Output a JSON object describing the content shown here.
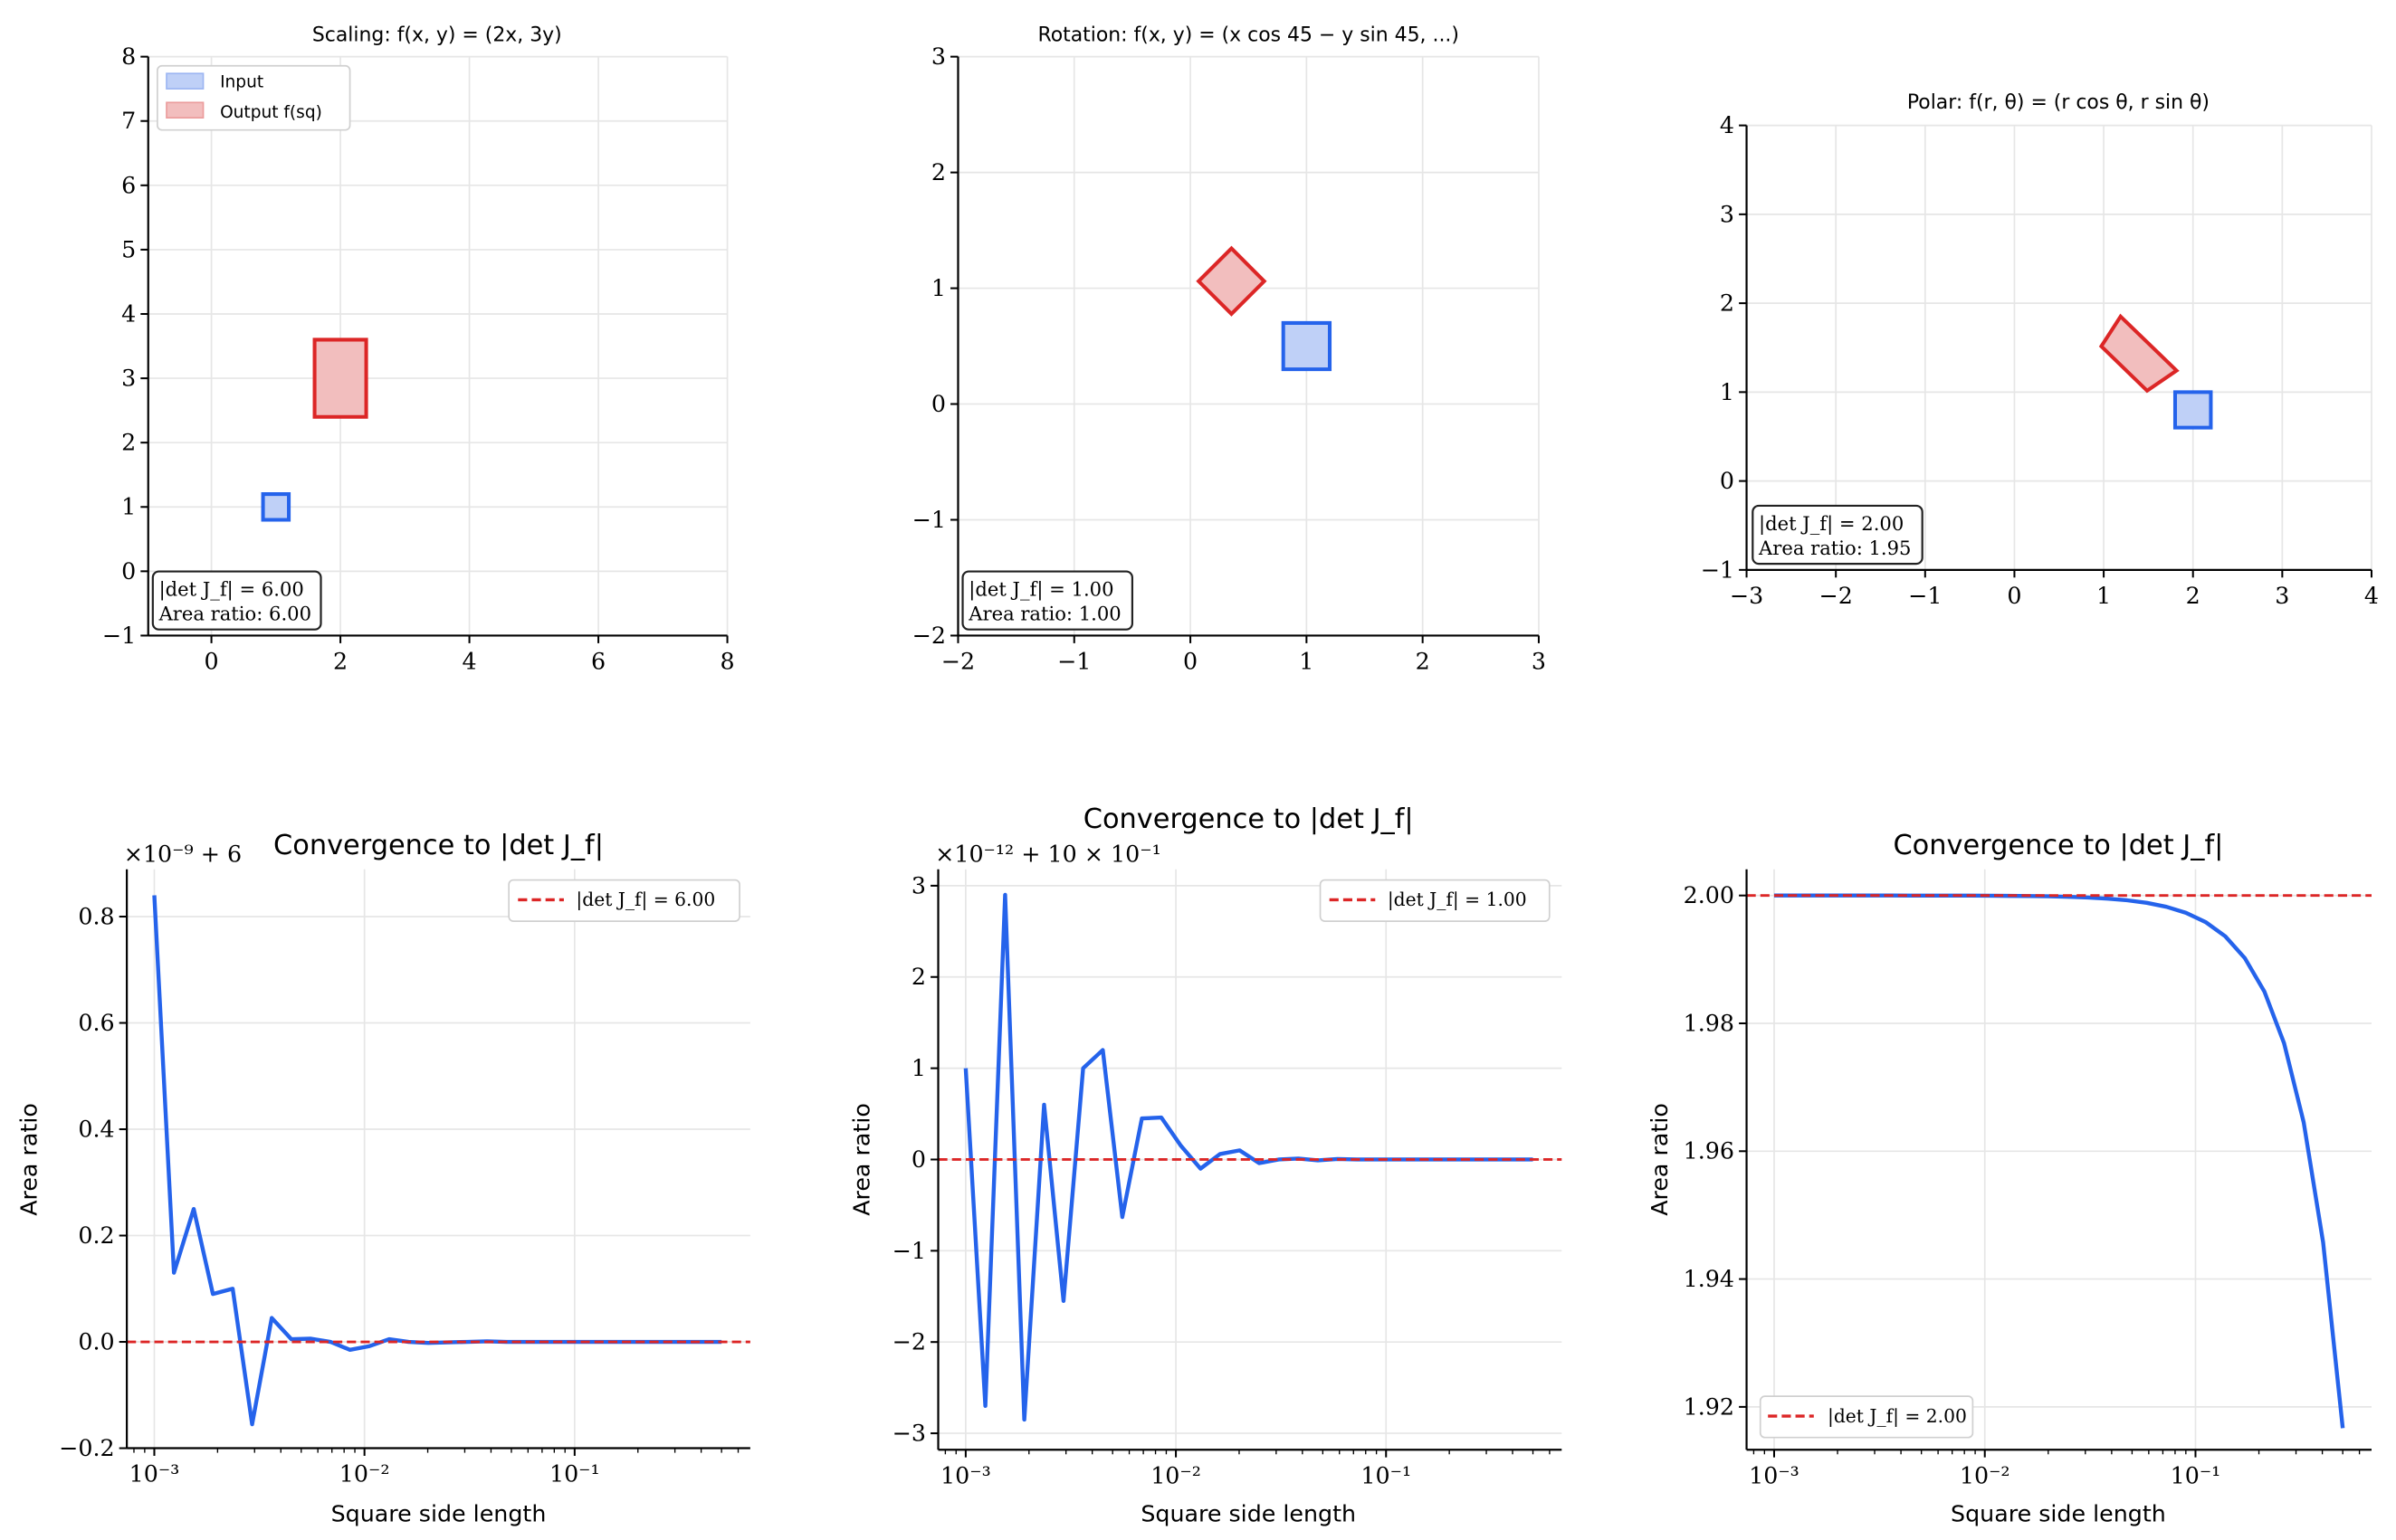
{
  "colors": {
    "input": "#2563eb",
    "output": "#dc2626",
    "reference": "#dc2626",
    "grid": "#e6e6e6"
  },
  "legend_top": {
    "input": "Input",
    "output": "Output f(sq)"
  },
  "chart_data": [
    {
      "type": "area",
      "title": "Scaling: f(x, y) = (2x, 3y)",
      "xlim": [
        -0.98,
        8
      ],
      "ylim": [
        -1,
        8
      ],
      "grid": true,
      "legend": "top-left",
      "xticks": [
        0,
        2,
        4,
        6,
        8
      ],
      "xtick_labels": [
        "0",
        "2",
        "4",
        "6",
        "8"
      ],
      "yticks": [
        -1,
        0,
        1,
        2,
        3,
        4,
        5,
        6,
        7,
        8
      ],
      "ytick_labels": [
        "−1",
        "0",
        "1",
        "2",
        "3",
        "4",
        "5",
        "6",
        "7",
        "8"
      ],
      "series": [
        {
          "name": "Input",
          "polygon": [
            [
              0.8,
              0.8
            ],
            [
              1.2,
              0.8
            ],
            [
              1.2,
              1.2
            ],
            [
              0.8,
              1.2
            ]
          ]
        },
        {
          "name": "Output f(sq)",
          "polygon": [
            [
              1.6,
              2.4
            ],
            [
              2.4,
              2.4
            ],
            [
              2.4,
              3.6
            ],
            [
              1.6,
              3.6
            ]
          ]
        }
      ],
      "annotation": [
        "|det J_f| = 6.00",
        "Area ratio: 6.00"
      ]
    },
    {
      "type": "area",
      "title": "Rotation: f(x, y) = (x cos 45 − y sin 45, ...)",
      "xlim": [
        -2,
        3
      ],
      "ylim": [
        -2,
        3
      ],
      "grid": true,
      "xticks": [
        -2,
        -1,
        0,
        1,
        2,
        3
      ],
      "xtick_labels": [
        "−2",
        "−1",
        "0",
        "1",
        "2",
        "3"
      ],
      "yticks": [
        -2,
        -1,
        0,
        1,
        2,
        3
      ],
      "ytick_labels": [
        "−2",
        "−1",
        "0",
        "1",
        "2",
        "3"
      ],
      "series": [
        {
          "polygon": [
            [
              0.8,
              0.3
            ],
            [
              1.2,
              0.3
            ],
            [
              1.2,
              0.7
            ],
            [
              0.8,
              0.7
            ]
          ]
        },
        {
          "polygon": [
            [
              0.354,
              0.778
            ],
            [
              0.636,
              1.061
            ],
            [
              0.354,
              1.344
            ],
            [
              0.071,
              1.061
            ]
          ]
        }
      ],
      "annotation": [
        "|det J_f| = 1.00",
        "Area ratio: 1.00"
      ]
    },
    {
      "type": "area",
      "title": "Polar: f(r, θ) = (r cos θ, r sin θ)",
      "xlim": [
        -3,
        4
      ],
      "ylim": [
        -1,
        4
      ],
      "grid": true,
      "xticks": [
        -3,
        -2,
        -1,
        0,
        1,
        2,
        3,
        4
      ],
      "xtick_labels": [
        "−3",
        "−2",
        "−1",
        "0",
        "1",
        "2",
        "3",
        "4"
      ],
      "yticks": [
        -1,
        0,
        1,
        2,
        3,
        4
      ],
      "ytick_labels": [
        "−1",
        "0",
        "1",
        "2",
        "3",
        "4"
      ],
      "series": [
        {
          "polygon": [
            [
              1.8,
              0.6
            ],
            [
              2.2,
              0.6
            ],
            [
              2.2,
              1.0
            ],
            [
              1.8,
              1.0
            ]
          ]
        },
        {
          "polygon": [
            [
              1.486,
              1.016
            ],
            [
              1.816,
              1.242
            ],
            [
              1.189,
              1.851
            ],
            [
              0.973,
              1.515
            ]
          ]
        }
      ],
      "annotation": [
        "|det J_f| = 2.00",
        "Area ratio: 1.95"
      ]
    },
    {
      "type": "line",
      "title": "Convergence to |det J_f|",
      "xlabel": "Square side length",
      "ylabel": "Area ratio",
      "xscale": "log",
      "xlim": [
        0.00074,
        0.685
      ],
      "ylim": [
        -0.2,
        0.889
      ],
      "grid": true,
      "legend": "top-right",
      "offset_text": "×10⁻⁹ + 6",
      "xticks": [
        0.001,
        0.01,
        0.1
      ],
      "xtick_labels": [
        "10⁻³",
        "10⁻²",
        "10⁻¹"
      ],
      "yticks": [
        -0.2,
        0,
        0.2,
        0.4,
        0.6,
        0.8
      ],
      "ytick_labels": [
        "−0.2",
        "0.0",
        "0.2",
        "0.4",
        "0.6",
        "0.8"
      ],
      "reference": {
        "value": 0,
        "label": "|det J_f| = 6.00"
      },
      "x": [
        0.001,
        0.00124,
        0.00154,
        0.0019,
        0.00236,
        0.00292,
        0.00362,
        0.00449,
        0.00556,
        0.00689,
        0.00853,
        0.01057,
        0.0131,
        0.01623,
        0.02011,
        0.02492,
        0.03087,
        0.03825,
        0.0474,
        0.05873,
        0.07277,
        0.09016,
        0.1117,
        0.1384,
        0.1715,
        0.2125,
        0.2633,
        0.3263,
        0.4035,
        0.5
      ],
      "y": [
        0.84,
        0.13,
        0.25,
        0.09,
        0.1,
        -0.155,
        0.045,
        0.005,
        0.006,
        0.0,
        -0.015,
        -0.008,
        0.005,
        0.0,
        -0.002,
        -0.001,
        0.0,
        0.001,
        0.0,
        0.0,
        0.0,
        0.0,
        0.0,
        0.0,
        0.0,
        0.0,
        0.0,
        0.0,
        0.0,
        0.0
      ]
    },
    {
      "type": "line",
      "title": "Convergence to |det J_f|",
      "xlabel": "Square side length",
      "ylabel": "Area ratio",
      "xscale": "log",
      "xlim": [
        0.00074,
        0.685
      ],
      "ylim": [
        -3.18,
        3.18
      ],
      "grid": true,
      "legend": "top-right",
      "offset_text": "×10⁻¹² + 10 × 10⁻¹",
      "xticks": [
        0.001,
        0.01,
        0.1
      ],
      "xtick_labels": [
        "10⁻³",
        "10⁻²",
        "10⁻¹"
      ],
      "yticks": [
        -3,
        -2,
        -1,
        0,
        1,
        2,
        3
      ],
      "ytick_labels": [
        "−3",
        "−2",
        "−1",
        "0",
        "1",
        "2",
        "3"
      ],
      "reference": {
        "value": 0,
        "label": "|det J_f| = 1.00"
      },
      "x": [
        0.001,
        0.00124,
        0.00154,
        0.0019,
        0.00236,
        0.00292,
        0.00362,
        0.00449,
        0.00556,
        0.00689,
        0.00853,
        0.01057,
        0.0131,
        0.01623,
        0.02011,
        0.02492,
        0.03087,
        0.03825,
        0.0474,
        0.05873,
        0.07277,
        0.09016,
        0.1117,
        0.1384,
        0.1715,
        0.2125,
        0.2633,
        0.3263,
        0.4035,
        0.5
      ],
      "y": [
        1.0,
        -2.7,
        2.9,
        -2.85,
        0.6,
        -1.55,
        1.0,
        1.2,
        -0.63,
        0.45,
        0.46,
        0.15,
        -0.1,
        0.06,
        0.1,
        -0.04,
        0.0,
        0.01,
        -0.01,
        0.005,
        0.0,
        0.0,
        0.0,
        0.0,
        0.0,
        0.0,
        0.0,
        0.0,
        0.0,
        0.0
      ]
    },
    {
      "type": "line",
      "title": "Convergence to |det J_f|",
      "xlabel": "Square side length",
      "ylabel": "Area ratio",
      "xscale": "log",
      "xlim": [
        0.00074,
        0.685
      ],
      "ylim": [
        1.9133,
        2.0041
      ],
      "grid": true,
      "legend": "bottom-left",
      "xticks": [
        0.001,
        0.01,
        0.1
      ],
      "xtick_labels": [
        "10⁻³",
        "10⁻²",
        "10⁻¹"
      ],
      "yticks": [
        1.92,
        1.94,
        1.96,
        1.98,
        2.0
      ],
      "ytick_labels": [
        "1.92",
        "1.94",
        "1.96",
        "1.98",
        "2.00"
      ],
      "reference": {
        "value": 2.0,
        "label": "|det J_f| = 2.00"
      },
      "x": [
        0.001,
        0.00124,
        0.00154,
        0.0019,
        0.00236,
        0.00292,
        0.00362,
        0.00449,
        0.00556,
        0.00689,
        0.00853,
        0.01057,
        0.0131,
        0.01623,
        0.02011,
        0.02492,
        0.03087,
        0.03825,
        0.0474,
        0.05873,
        0.07277,
        0.09016,
        0.1117,
        0.1384,
        0.1715,
        0.2125,
        0.2633,
        0.3263,
        0.4035,
        0.5
      ],
      "y": [
        2.0,
        2.0,
        2.0,
        2.0,
        2.0,
        2.0,
        2.0,
        1.99999,
        1.99999,
        1.99998,
        1.99998,
        1.99996,
        1.99994,
        1.99991,
        1.99987,
        1.99979,
        1.99968,
        1.99951,
        1.99925,
        1.99885,
        1.99823,
        1.99729,
        1.99584,
        1.99362,
        1.9902,
        1.98495,
        1.97689,
        1.96451,
        1.94573,
        1.91667
      ]
    }
  ]
}
